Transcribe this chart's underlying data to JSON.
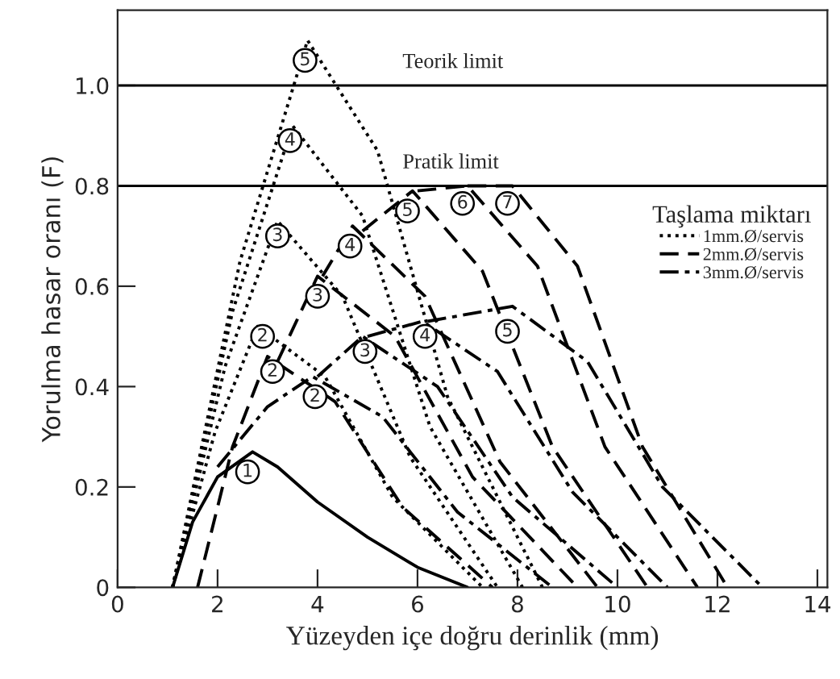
{
  "chart_data": {
    "type": "line",
    "xlabel": "Yüzeyden içe doğru derinlik (mm)",
    "ylabel": "Yorulma hasar oranı (F)",
    "legend_title": "Taşlama miktarı",
    "xlim": [
      0,
      14.2
    ],
    "ylim": [
      0,
      1.15
    ],
    "xticks": [
      0,
      2,
      4,
      6,
      8,
      10,
      12,
      14
    ],
    "yticks": [
      0,
      0.2,
      0.4,
      0.6,
      0.8,
      {
        "value": 1,
        "label": "1.0"
      }
    ],
    "grid": false,
    "legend": "right",
    "marker": "none",
    "ref_lines": [
      {
        "axis": "y",
        "value": 1,
        "label": "Teorik limit",
        "color": "#000000"
      },
      {
        "axis": "y",
        "value": 0.8,
        "label": "Pratik limit",
        "color": "#000000"
      }
    ],
    "series": [
      {
        "color": "#000000",
        "line_style": "solid",
        "x": [
          1.1,
          1.5,
          2.0,
          2.7,
          3.2,
          4.0,
          5.0,
          6.0,
          7.0
        ],
        "values": [
          0,
          0.13,
          0.22,
          0.27,
          0.24,
          0.17,
          0.1,
          0.04,
          0
        ]
      },
      {
        "name": "1mm.Ø/servis",
        "color": "#000000",
        "line_style": "dotted",
        "x": [
          1.1,
          1.95,
          2.8,
          4.15,
          5.5,
          7.3
        ],
        "values": [
          0,
          0.31,
          0.52,
          0.42,
          0.18,
          0
        ]
      },
      {
        "color": "#000000",
        "line_style": "dotted",
        "x": [
          1.1,
          2.15,
          3.2,
          4.5,
          5.85,
          7.6
        ],
        "values": [
          0,
          0.44,
          0.73,
          0.58,
          0.26,
          0
        ]
      },
      {
        "color": "#000000",
        "line_style": "dotted",
        "x": [
          1.1,
          2.3,
          3.5,
          4.9,
          6.25,
          8.1
        ],
        "values": [
          0,
          0.55,
          0.92,
          0.74,
          0.32,
          0
        ]
      },
      {
        "color": "#000000",
        "line_style": "dotted",
        "x": [
          1.1,
          2.45,
          3.8,
          5.2,
          6.6,
          8.5
        ],
        "values": [
          0,
          0.65,
          1.09,
          0.87,
          0.38,
          0
        ]
      },
      {
        "name": "2mm.Ø/servis",
        "color": "#000000",
        "line_style": "dashed",
        "x": [
          1.6,
          2.3,
          3.0,
          4.35,
          5.7,
          7.5
        ],
        "values": [
          0,
          0.28,
          0.46,
          0.37,
          0.16,
          0
        ]
      },
      {
        "color": "#000000",
        "line_style": "dashed",
        "x": [
          3.2,
          4.0,
          5.55,
          7.1,
          9.2
        ],
        "values": [
          0.45,
          0.62,
          0.5,
          0.22,
          0
        ]
      },
      {
        "color": "#000000",
        "line_style": "dashed",
        "x": [
          4.1,
          4.7,
          6.15,
          7.65,
          9.6
        ],
        "values": [
          0.62,
          0.72,
          0.58,
          0.25,
          0
        ]
      },
      {
        "color": "#000000",
        "line_style": "dashed",
        "x": [
          4.9,
          5.9,
          7.3,
          8.7,
          10.6
        ],
        "values": [
          0.71,
          0.79,
          0.63,
          0.28,
          0
        ]
      },
      {
        "color": "#000000",
        "line_style": "dashed",
        "x": [
          6.0,
          7.0,
          8.4,
          9.75,
          11.6
        ],
        "values": [
          0.79,
          0.8,
          0.64,
          0.28,
          0
        ]
      },
      {
        "color": "#000000",
        "line_style": "dashed",
        "x": [
          7.0,
          7.9,
          9.2,
          10.5,
          12.2
        ],
        "values": [
          0.8,
          0.8,
          0.64,
          0.28,
          0
        ]
      },
      {
        "name": "3mm.Ø/servis",
        "color": "#000000",
        "line_style": "dashdot",
        "x": [
          2.0,
          3.0,
          3.9,
          5.3,
          6.8,
          8.7
        ],
        "values": [
          0.24,
          0.36,
          0.42,
          0.34,
          0.15,
          0
        ]
      },
      {
        "color": "#000000",
        "line_style": "dashdot",
        "x": [
          4.0,
          4.9,
          6.4,
          7.9,
          10.0
        ],
        "values": [
          0.42,
          0.5,
          0.4,
          0.18,
          0
        ]
      },
      {
        "color": "#000000",
        "line_style": "dashdot",
        "x": [
          5.0,
          6.1,
          7.6,
          9.1,
          11.0
        ],
        "values": [
          0.5,
          0.53,
          0.43,
          0.19,
          0
        ]
      },
      {
        "color": "#000000",
        "line_style": "dashdot",
        "x": [
          6.2,
          7.9,
          9.4,
          10.9,
          12.9
        ],
        "values": [
          0.53,
          0.56,
          0.45,
          0.2,
          0
        ]
      }
    ],
    "annotations": [
      {
        "text": "1",
        "x": 2.6,
        "y": 0.23
      },
      {
        "text": "2",
        "x": 2.9,
        "y": 0.5
      },
      {
        "text": "3",
        "x": 3.2,
        "y": 0.7
      },
      {
        "text": "4",
        "x": 3.45,
        "y": 0.89
      },
      {
        "text": "5",
        "x": 3.75,
        "y": 1.05
      },
      {
        "text": "2",
        "x": 3.1,
        "y": 0.43
      },
      {
        "text": "3",
        "x": 4.0,
        "y": 0.58
      },
      {
        "text": "4",
        "x": 4.65,
        "y": 0.68
      },
      {
        "text": "5",
        "x": 5.8,
        "y": 0.75
      },
      {
        "text": "6",
        "x": 6.9,
        "y": 0.765
      },
      {
        "text": "7",
        "x": 7.8,
        "y": 0.765
      },
      {
        "text": "2",
        "x": 3.95,
        "y": 0.38
      },
      {
        "text": "3",
        "x": 4.95,
        "y": 0.47
      },
      {
        "text": "4",
        "x": 6.15,
        "y": 0.5
      },
      {
        "text": "5",
        "x": 7.8,
        "y": 0.51
      }
    ]
  }
}
